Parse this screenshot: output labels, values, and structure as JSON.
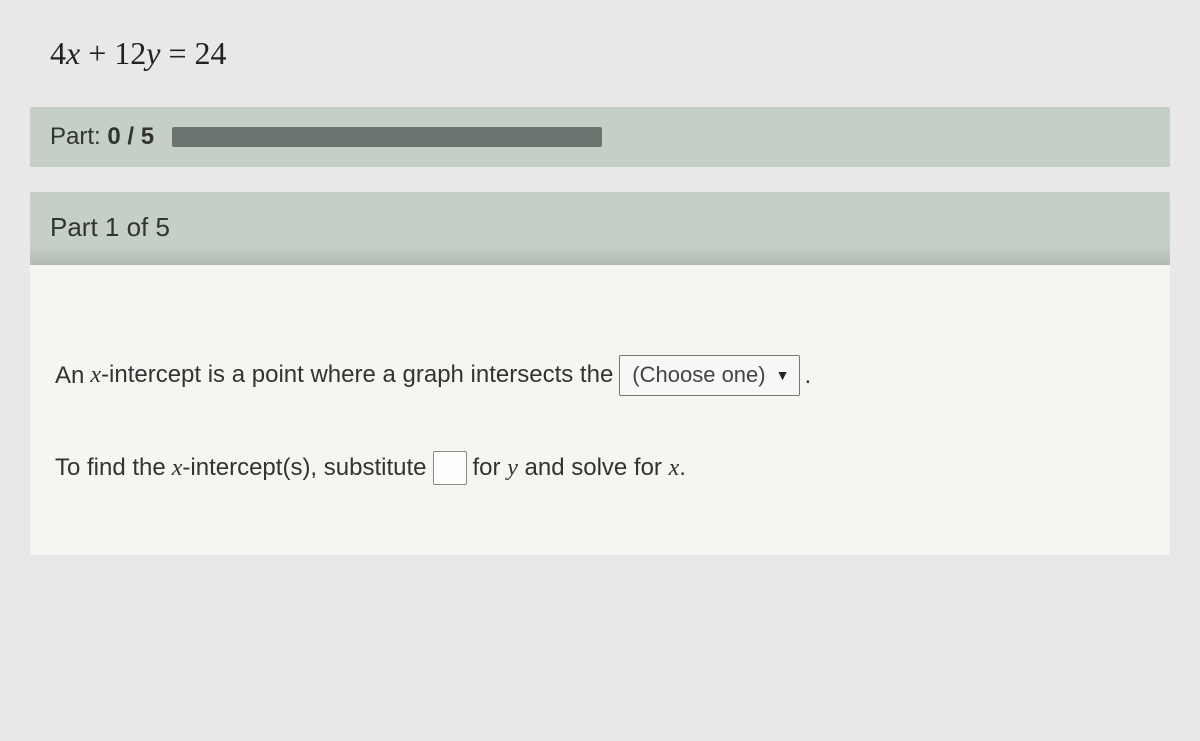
{
  "equation": {
    "coef_x": "4",
    "var_x": "x",
    "plus": " + ",
    "coef_y": "12",
    "var_y": "y",
    "eq": " = ",
    "rhs": "24"
  },
  "progress": {
    "label_prefix": "Part: ",
    "current": "0",
    "sep": " / ",
    "total": "5"
  },
  "part_header": "Part 1 of 5",
  "sentence1": {
    "pre": "An ",
    "var": "x",
    "mid": "-intercept is a point where a graph intersects the ",
    "dropdown_text": "(Choose one)",
    "post": "."
  },
  "sentence2": {
    "pre": "To find the ",
    "var1": "x",
    "mid1": "-intercept(s), substitute ",
    "mid2": " for ",
    "var2": "y",
    "mid3": " and solve for ",
    "var3": "x",
    "post": "."
  }
}
